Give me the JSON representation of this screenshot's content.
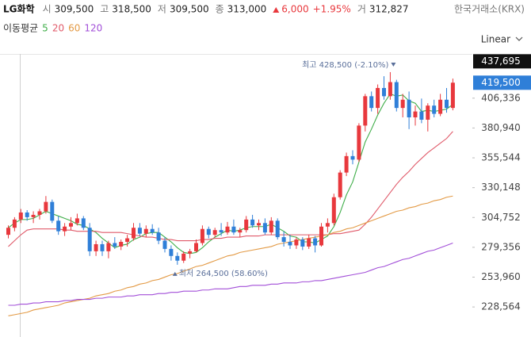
{
  "chart_data": {
    "type": "candlestick",
    "symbol": "LG화학",
    "quote": [
      {
        "label": "시",
        "value": "309,500"
      },
      {
        "label": "고",
        "value": "318,500"
      },
      {
        "label": "저",
        "value": "309,500"
      },
      {
        "label": "종",
        "value": "313,000"
      }
    ],
    "change": "6,000",
    "change_percent": "+1.95%",
    "volume_label": "거",
    "volume": "312,827",
    "exchange": "한국거래소(KRX)",
    "ma_title": "이동평균",
    "scale": "Linear",
    "up_color": "#e8383d",
    "down_color": "#2f7fd8",
    "ylim": [
      203000,
      444000
    ],
    "yticks": [
      {
        "value": 406336,
        "label": "406,336"
      },
      {
        "value": 380940,
        "label": "380,940"
      },
      {
        "value": 355544,
        "label": "355,544"
      },
      {
        "value": 330148,
        "label": "330,148"
      },
      {
        "value": 304752,
        "label": "304,752"
      },
      {
        "value": 279356,
        "label": "279,356"
      },
      {
        "value": 253960,
        "label": "253,960"
      },
      {
        "value": 228564,
        "label": "228,564"
      }
    ],
    "price_tags": [
      {
        "value": 437695,
        "label": "437,695",
        "color": "#111111"
      },
      {
        "value": 419500,
        "label": "419,500",
        "color": "#2f7fd8"
      }
    ],
    "annotations": [
      {
        "text": "최고 428,500 (-2.10%)",
        "value": 428500,
        "index": 61,
        "kind": "high"
      },
      {
        "text": "최저 264,500 (58.60%)",
        "value": 264500,
        "index": 27,
        "kind": "low"
      }
    ],
    "open": [
      290000,
      296000,
      303000,
      309000,
      305000,
      307000,
      310000,
      318000,
      302000,
      293000,
      297000,
      300000,
      304000,
      296000,
      276000,
      282000,
      276000,
      283000,
      280000,
      284000,
      287000,
      296000,
      291000,
      295000,
      292000,
      285000,
      278000,
      272000,
      268000,
      274000,
      276000,
      283000,
      295000,
      290000,
      294000,
      292000,
      297000,
      292000,
      294000,
      303000,
      298000,
      300000,
      292000,
      302000,
      288000,
      284000,
      281000,
      286000,
      280000,
      287000,
      281000,
      297000,
      300000,
      322000,
      343000,
      357000,
      354000,
      383000,
      408000,
      398000,
      415000,
      408000,
      420000,
      398000,
      405000,
      390000,
      395000,
      388000,
      400000,
      393000,
      405000,
      398000
    ],
    "high": [
      298000,
      305000,
      312000,
      311000,
      310000,
      312000,
      323000,
      320000,
      306000,
      300000,
      305000,
      308000,
      306000,
      300000,
      285000,
      285000,
      285000,
      288000,
      286000,
      290000,
      300000,
      300000,
      298000,
      299000,
      296000,
      288000,
      281000,
      275000,
      276000,
      278000,
      286000,
      298000,
      297000,
      296000,
      300000,
      301000,
      303000,
      296000,
      306000,
      307000,
      303000,
      304000,
      305000,
      304000,
      293000,
      290000,
      288000,
      288000,
      290000,
      289000,
      300000,
      304000,
      325000,
      345000,
      360000,
      362000,
      385000,
      410000,
      412000,
      418000,
      425000,
      428500,
      422000,
      410000,
      412000,
      400000,
      406000,
      402000,
      405000,
      410000,
      415000,
      423000
    ],
    "low": [
      287000,
      293000,
      300000,
      302000,
      300000,
      303000,
      308000,
      300000,
      290000,
      289000,
      294000,
      298000,
      294000,
      272000,
      272000,
      272000,
      270000,
      278000,
      277000,
      280000,
      285000,
      289000,
      288000,
      290000,
      282000,
      275000,
      268000,
      264500,
      266000,
      270000,
      275000,
      281000,
      287000,
      288000,
      289000,
      290000,
      290000,
      288000,
      292000,
      296000,
      294000,
      290000,
      290000,
      286000,
      280000,
      278000,
      278000,
      277000,
      278000,
      275000,
      280000,
      292000,
      298000,
      320000,
      340000,
      350000,
      352000,
      378000,
      395000,
      393000,
      405000,
      405000,
      395000,
      390000,
      380000,
      383000,
      385000,
      378000,
      390000,
      391000,
      394000,
      396000
    ],
    "close": [
      296000,
      303000,
      309000,
      305000,
      307000,
      310000,
      318000,
      302000,
      293000,
      297000,
      300000,
      304000,
      296000,
      276000,
      282000,
      276000,
      283000,
      280000,
      284000,
      287000,
      296000,
      291000,
      295000,
      292000,
      285000,
      278000,
      272000,
      268000,
      274000,
      276000,
      283000,
      295000,
      290000,
      294000,
      292000,
      297000,
      292000,
      294000,
      303000,
      298000,
      300000,
      292000,
      302000,
      288000,
      284000,
      281000,
      286000,
      280000,
      287000,
      281000,
      297000,
      300000,
      322000,
      343000,
      357000,
      354000,
      383000,
      408000,
      398000,
      415000,
      408000,
      420000,
      398000,
      405000,
      390000,
      395000,
      388000,
      400000,
      393000,
      405000,
      398000,
      419500
    ],
    "moving_averages": [
      {
        "name": "5",
        "color": "#3fae49",
        "values": [
          296000,
          300000,
          303000,
          303000,
          304000,
          307000,
          310000,
          308000,
          306000,
          304000,
          302000,
          299000,
          298000,
          295000,
          292000,
          287000,
          283000,
          279000,
          281000,
          282000,
          286000,
          288000,
          291000,
          292000,
          292000,
          288000,
          284000,
          279000,
          275000,
          274000,
          275000,
          279000,
          284000,
          288000,
          291000,
          294000,
          293000,
          294000,
          296000,
          297000,
          297000,
          297000,
          299000,
          296000,
          293000,
          289000,
          288000,
          284000,
          284000,
          283000,
          286000,
          289000,
          297000,
          309000,
          324000,
          335000,
          352000,
          369000,
          380000,
          392000,
          402000,
          410000,
          408000,
          409000,
          404000,
          402000,
          395000,
          396000,
          395000,
          396000,
          397000,
          401000
        ]
      },
      {
        "name": "20",
        "color": "#e05a6a",
        "values": [
          280000,
          285000,
          290000,
          294000,
          295000,
          295000,
          295000,
          295000,
          295000,
          294000,
          294000,
          293000,
          293000,
          293000,
          293000,
          292000,
          292000,
          292000,
          292000,
          291000,
          290000,
          289000,
          288000,
          288000,
          287000,
          286000,
          286000,
          285000,
          285000,
          285000,
          285000,
          286000,
          286000,
          287000,
          287000,
          288000,
          288000,
          288000,
          289000,
          289000,
          289000,
          290000,
          290000,
          290000,
          290000,
          290000,
          290000,
          290000,
          290000,
          290000,
          290000,
          290000,
          291000,
          291000,
          292000,
          293000,
          294000,
          299000,
          305000,
          312000,
          319000,
          326000,
          333000,
          339000,
          344000,
          350000,
          355000,
          360000,
          364000,
          368000,
          372000,
          378000
        ]
      },
      {
        "name": "60",
        "color": "#e39a45",
        "values": [
          221000,
          222000,
          223000,
          224000,
          226000,
          227000,
          228000,
          229000,
          230000,
          232000,
          233000,
          234000,
          235000,
          236000,
          238000,
          239000,
          240000,
          242000,
          243000,
          245000,
          246000,
          248000,
          249000,
          251000,
          252000,
          254000,
          256000,
          257000,
          259000,
          261000,
          263000,
          264000,
          266000,
          268000,
          270000,
          272000,
          273000,
          275000,
          276000,
          277000,
          278000,
          279000,
          280000,
          282000,
          283000,
          284000,
          285000,
          286000,
          287000,
          288000,
          289000,
          290000,
          292000,
          293000,
          295000,
          296000,
          298000,
          300000,
          302000,
          304000,
          306000,
          308000,
          310000,
          311000,
          313000,
          314000,
          316000,
          317000,
          319000,
          320000,
          322000,
          323000
        ]
      },
      {
        "name": "120",
        "color": "#a24fd8",
        "values": [
          230000,
          230000,
          231000,
          231000,
          232000,
          232000,
          233000,
          233000,
          233000,
          234000,
          234000,
          235000,
          235000,
          235000,
          236000,
          236000,
          237000,
          237000,
          237000,
          238000,
          238000,
          239000,
          239000,
          239000,
          240000,
          240000,
          241000,
          241000,
          242000,
          242000,
          242000,
          243000,
          243000,
          244000,
          244000,
          244000,
          245000,
          246000,
          246000,
          247000,
          247000,
          247000,
          248000,
          248000,
          249000,
          249000,
          249000,
          250000,
          250000,
          251000,
          251000,
          252000,
          253000,
          254000,
          255000,
          256000,
          257000,
          258000,
          260000,
          262000,
          263000,
          265000,
          267000,
          269000,
          270000,
          272000,
          274000,
          276000,
          277000,
          279000,
          281000,
          283000
        ]
      }
    ]
  }
}
